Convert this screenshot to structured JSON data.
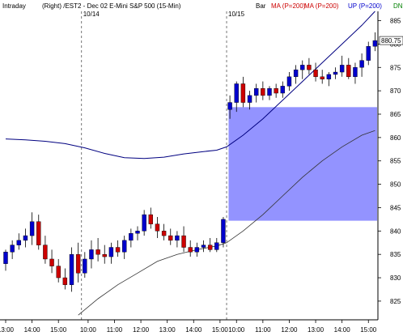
{
  "header": {
    "mode": "Intraday",
    "title": "(Right) /EST2 - Dec 02  E-Mini S&P 500  (15-Min)",
    "bar_label": "Bar",
    "ma1_label": "MA (P=200)",
    "ma2_label": "MA (P=200)",
    "up_label": "UP (P=200)",
    "dn_label": "DN"
  },
  "colors": {
    "up_candle": "#0000cc",
    "down_candle": "#cc0000",
    "upper_band": "#000080",
    "lower_band": "#333333",
    "zone_fill": "#8080ff",
    "last_price_box": "#ffffff"
  },
  "chart_data": {
    "type": "candlestick",
    "title": "(Right) /EST2 - Dec 02  E-Mini S&P 500  (15-Min)",
    "ylim": [
      821,
      887
    ],
    "y_ticks": [
      825,
      830,
      835,
      840,
      845,
      850,
      855,
      860,
      865,
      870,
      875,
      880,
      885
    ],
    "last_price": "880.75",
    "session_markers": [
      {
        "label": "10/14",
        "index": 11.5
      },
      {
        "label": "10/15",
        "index": 33.5
      }
    ],
    "x_ticks": [
      {
        "label": "13:00",
        "index": 0
      },
      {
        "label": "14:00",
        "index": 4
      },
      {
        "label": "15:00",
        "index": 8
      },
      {
        "label": "10:00",
        "index": 12.5
      },
      {
        "label": "11:00",
        "index": 16.5
      },
      {
        "label": "12:00",
        "index": 20.5
      },
      {
        "label": "13:00",
        "index": 24.5
      },
      {
        "label": "14:00",
        "index": 28.5
      },
      {
        "label": "15:00",
        "index": 32.5
      },
      {
        "label": "10:00",
        "index": 35
      },
      {
        "label": "11:00",
        "index": 39
      },
      {
        "label": "12:00",
        "index": 43
      },
      {
        "label": "13:00",
        "index": 47
      },
      {
        "label": "14:00",
        "index": 51
      },
      {
        "label": "15:00",
        "index": 55
      }
    ],
    "zone": {
      "index_start": 33.8,
      "index_end": 58,
      "y_low": 842.2,
      "y_high": 866.5
    },
    "ohlc": [
      [
        833,
        836,
        831.5,
        835.5
      ],
      [
        835.5,
        838,
        834,
        837
      ],
      [
        837,
        839.5,
        836,
        838
      ],
      [
        838,
        840.5,
        836.5,
        839
      ],
      [
        839,
        844,
        837,
        842
      ],
      [
        842,
        843.5,
        836,
        837
      ],
      [
        837,
        839,
        833,
        834
      ],
      [
        834,
        836,
        831,
        832.5
      ],
      [
        832.5,
        834,
        829,
        830
      ],
      [
        830,
        832,
        827.5,
        828.5
      ],
      [
        828.5,
        836.5,
        827,
        835
      ],
      [
        835,
        837.5,
        829,
        831
      ],
      [
        831,
        835.5,
        830,
        834
      ],
      [
        834,
        838,
        832,
        836
      ],
      [
        836,
        838.5,
        833.5,
        835
      ],
      [
        835,
        837,
        833,
        834.5
      ],
      [
        834.5,
        837.5,
        833,
        836.5
      ],
      [
        836.5,
        838,
        834.5,
        835.5
      ],
      [
        835.5,
        839,
        834,
        838
      ],
      [
        838,
        840.5,
        836.5,
        839.5
      ],
      [
        839.5,
        841,
        838,
        840
      ],
      [
        840,
        844.5,
        839,
        843.5
      ],
      [
        843.5,
        845,
        840.5,
        841.5
      ],
      [
        841.5,
        843,
        838.5,
        840
      ],
      [
        840,
        841.5,
        838,
        839
      ],
      [
        839,
        840.5,
        837,
        838
      ],
      [
        838,
        840,
        836.5,
        839
      ],
      [
        839,
        841,
        835.5,
        836.5
      ],
      [
        836.5,
        838,
        834.5,
        835.5
      ],
      [
        835.5,
        837.5,
        834.5,
        836.5
      ],
      [
        836.5,
        838,
        835.5,
        837
      ],
      [
        837,
        838.5,
        835.5,
        836
      ],
      [
        836,
        838.5,
        835.5,
        837.5
      ],
      [
        837.5,
        843,
        836.5,
        842.5
      ],
      [
        866,
        869,
        864,
        867.5
      ],
      [
        867.5,
        872,
        865.5,
        871.5
      ],
      [
        871.5,
        873,
        866.5,
        867.5
      ],
      [
        867.5,
        870,
        866,
        869
      ],
      [
        869,
        871.5,
        867.5,
        870.5
      ],
      [
        870.5,
        872,
        868,
        869
      ],
      [
        869,
        871,
        868,
        870.5
      ],
      [
        870.5,
        871.5,
        868.5,
        869.5
      ],
      [
        869.5,
        872,
        868.5,
        871
      ],
      [
        871,
        874,
        870,
        873
      ],
      [
        873,
        875.5,
        871.5,
        874.5
      ],
      [
        874.5,
        876.5,
        872.5,
        875.5
      ],
      [
        875.5,
        877,
        873.5,
        874.5
      ],
      [
        874.5,
        876,
        872,
        873
      ],
      [
        873,
        874.5,
        871.5,
        872.5
      ],
      [
        872.5,
        874,
        871,
        873.5
      ],
      [
        873.5,
        875,
        872.5,
        874
      ],
      [
        874,
        877.5,
        873,
        875.5
      ],
      [
        875.5,
        877,
        872.5,
        873
      ],
      [
        873,
        876,
        871.5,
        875
      ],
      [
        875,
        878,
        873,
        876.5
      ],
      [
        876.5,
        880.5,
        875.5,
        879.5
      ],
      [
        879.5,
        882.5,
        878.5,
        880.75
      ]
    ],
    "ma_upper": [
      [
        0,
        859.7
      ],
      [
        3,
        859.5
      ],
      [
        6,
        859.2
      ],
      [
        9,
        858.7
      ],
      [
        12,
        857.8
      ],
      [
        15,
        856.6
      ],
      [
        18,
        855.7
      ],
      [
        21,
        855.5
      ],
      [
        24,
        855.8
      ],
      [
        27,
        856.5
      ],
      [
        30,
        857.0
      ],
      [
        32,
        857.3
      ],
      [
        33.5,
        858.0
      ],
      [
        36,
        860.5
      ],
      [
        39,
        864.0
      ],
      [
        42,
        868.0
      ],
      [
        45,
        872.0
      ],
      [
        48,
        876.0
      ],
      [
        51,
        880.0
      ],
      [
        54,
        884.0
      ],
      [
        56,
        887.0
      ]
    ],
    "ma_lower": [
      [
        11,
        822.0
      ],
      [
        14,
        825.5
      ],
      [
        17,
        828.5
      ],
      [
        20,
        831.0
      ],
      [
        23,
        833.5
      ],
      [
        26,
        835.0
      ],
      [
        29,
        836.0
      ],
      [
        32,
        836.8
      ],
      [
        33.5,
        837.5
      ],
      [
        36,
        840.0
      ],
      [
        39,
        843.5
      ],
      [
        42,
        847.5
      ],
      [
        45,
        851.5
      ],
      [
        48,
        855.0
      ],
      [
        51,
        858.0
      ],
      [
        54,
        860.5
      ],
      [
        56,
        861.5
      ]
    ]
  }
}
